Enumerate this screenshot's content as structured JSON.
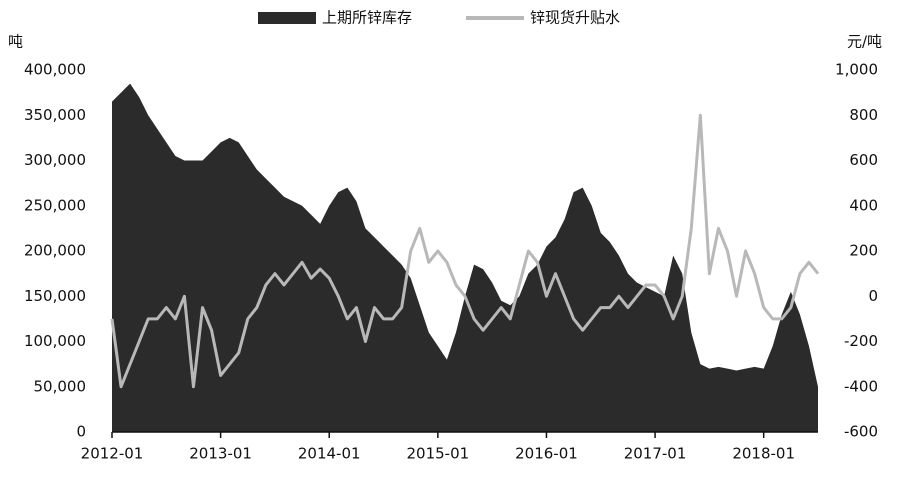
{
  "chart_data": {
    "type": "area-line",
    "legend": "top",
    "y_label": "吨",
    "y2_label": "元/吨",
    "x": [
      "2012-01",
      "2012-02",
      "2012-03",
      "2012-04",
      "2012-05",
      "2012-06",
      "2012-07",
      "2012-08",
      "2012-09",
      "2012-10",
      "2012-11",
      "2012-12",
      "2013-01",
      "2013-02",
      "2013-03",
      "2013-04",
      "2013-05",
      "2013-06",
      "2013-07",
      "2013-08",
      "2013-09",
      "2013-10",
      "2013-11",
      "2013-12",
      "2014-01",
      "2014-02",
      "2014-03",
      "2014-04",
      "2014-05",
      "2014-06",
      "2014-07",
      "2014-08",
      "2014-09",
      "2014-10",
      "2014-11",
      "2014-12",
      "2015-01",
      "2015-02",
      "2015-03",
      "2015-04",
      "2015-05",
      "2015-06",
      "2015-07",
      "2015-08",
      "2015-09",
      "2015-10",
      "2015-11",
      "2015-12",
      "2016-01",
      "2016-02",
      "2016-03",
      "2016-04",
      "2016-05",
      "2016-06",
      "2016-07",
      "2016-08",
      "2016-09",
      "2016-10",
      "2016-11",
      "2016-12",
      "2017-01",
      "2017-02",
      "2017-03",
      "2017-04",
      "2017-05",
      "2017-06",
      "2017-07",
      "2017-08",
      "2017-09",
      "2017-10",
      "2017-11",
      "2017-12",
      "2018-01",
      "2018-02",
      "2018-03",
      "2018-04",
      "2018-05",
      "2018-06",
      "2018-07"
    ],
    "xticks": [
      "2012-01",
      "2013-01",
      "2014-01",
      "2015-01",
      "2016-01",
      "2017-01",
      "2018-01"
    ],
    "ylim": [
      0,
      400000
    ],
    "yticks": [
      0,
      {
        "value": 50000,
        "label": "50,000"
      },
      {
        "value": 100000,
        "label": "100,000"
      },
      {
        "value": 150000,
        "label": "150,000"
      },
      {
        "value": 200000,
        "label": "200,000"
      },
      {
        "value": 250000,
        "label": "250,000"
      },
      {
        "value": 300000,
        "label": "300,000"
      },
      {
        "value": 350000,
        "label": "350,000"
      },
      {
        "value": 400000,
        "label": "400,000"
      }
    ],
    "y2lim": [
      -600,
      1000
    ],
    "y2ticks": [
      -600,
      -400,
      -200,
      0,
      200,
      400,
      600,
      800,
      {
        "value": 1000,
        "label": "1,000"
      }
    ],
    "series": [
      {
        "name": "上期所锌库存",
        "type": "area",
        "color": "#2b2b2b",
        "values": [
          365000,
          375000,
          385000,
          370000,
          350000,
          335000,
          320000,
          305000,
          300000,
          300000,
          300000,
          310000,
          320000,
          325000,
          320000,
          305000,
          290000,
          280000,
          270000,
          260000,
          255000,
          250000,
          240000,
          230000,
          250000,
          265000,
          270000,
          255000,
          225000,
          215000,
          205000,
          195000,
          185000,
          170000,
          140000,
          110000,
          95000,
          80000,
          110000,
          150000,
          185000,
          180000,
          165000,
          145000,
          140000,
          150000,
          175000,
          185000,
          205000,
          215000,
          235000,
          265000,
          270000,
          250000,
          220000,
          210000,
          195000,
          175000,
          165000,
          160000,
          155000,
          150000,
          195000,
          175000,
          110000,
          75000,
          70000,
          72000,
          70000,
          68000,
          70000,
          72000,
          70000,
          95000,
          130000,
          155000,
          130000,
          95000,
          50000
        ]
      },
      {
        "name": "锌现货升贴水",
        "type": "line",
        "axis": "y2",
        "color": "#b8b8b8",
        "values": [
          -100,
          -400,
          -300,
          -200,
          -100,
          -100,
          -50,
          -100,
          0,
          -400,
          -50,
          -150,
          -350,
          -300,
          -250,
          -100,
          -50,
          50,
          100,
          50,
          100,
          150,
          80,
          120,
          80,
          0,
          -100,
          -50,
          -200,
          -50,
          -100,
          -100,
          -50,
          200,
          300,
          150,
          200,
          150,
          50,
          0,
          -100,
          -150,
          -100,
          -50,
          -100,
          50,
          200,
          150,
          0,
          100,
          0,
          -100,
          -150,
          -100,
          -50,
          -50,
          0,
          -50,
          0,
          50,
          50,
          0,
          -100,
          0,
          300,
          800,
          100,
          300,
          200,
          0,
          200,
          100,
          -50,
          -100,
          -100,
          -50,
          100,
          150,
          100
        ]
      }
    ]
  }
}
